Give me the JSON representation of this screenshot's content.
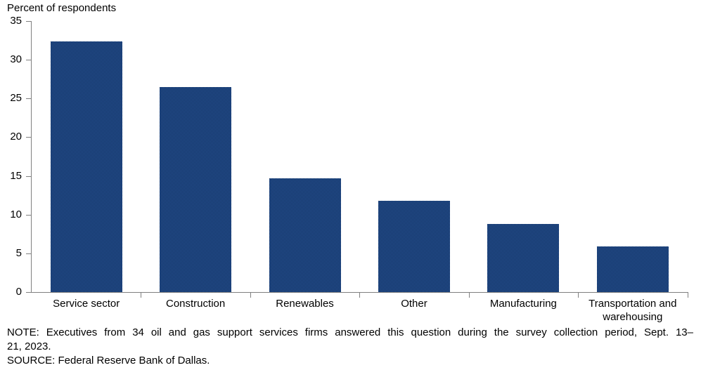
{
  "chart_data": {
    "type": "bar",
    "title": "Percent of respondents",
    "categories": [
      "Service sector",
      "Construction",
      "Renewables",
      "Other",
      "Manufacturing",
      "Transportation and warehousing"
    ],
    "values": [
      32.4,
      26.5,
      14.7,
      11.8,
      8.8,
      5.9
    ],
    "xlabel": "",
    "ylabel": "Percent of respondents",
    "ylim": [
      0,
      35
    ],
    "ytick_step": 5,
    "yticks": [
      0,
      5,
      10,
      15,
      20,
      25,
      30,
      35
    ],
    "grid": false,
    "legend_position": "none",
    "bar_color_avg": "#1c437d",
    "bar_dither_light": "#2e64b5",
    "bar_dither_dark": "#0b2040",
    "axis_color": "#808080",
    "text_color": "#000000"
  },
  "note": {
    "line1": "NOTE: Executives from 34 oil and gas support services firms answered this question during the survey collection period, Sept. 13–",
    "line2": "21, 2023.",
    "source": "SOURCE: Federal Reserve Bank of Dallas."
  }
}
